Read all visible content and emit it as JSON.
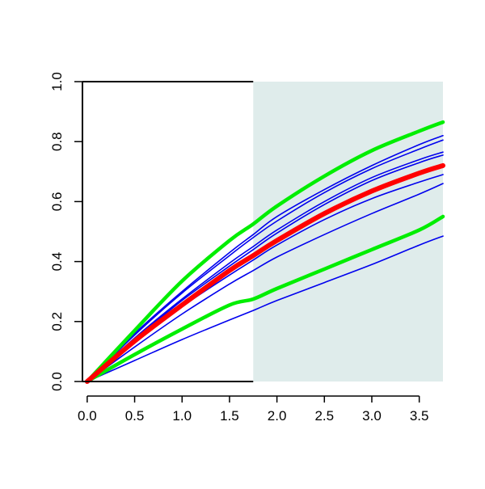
{
  "chart_data": {
    "type": "line",
    "title": "",
    "xlabel": "",
    "ylabel": "",
    "xlim": [
      -0.05,
      3.75
    ],
    "ylim": [
      0,
      1
    ],
    "x_ticks": [
      "0.0",
      "0.5",
      "1.0",
      "1.5",
      "2.0",
      "2.5",
      "3.0",
      "3.5"
    ],
    "y_ticks": [
      "0.0",
      "0.2",
      "0.4",
      "0.6",
      "0.8",
      "1.0"
    ],
    "grid": false,
    "shaded_region": {
      "x_start": 1.75,
      "x_end": 3.75,
      "color": "#dfeceb"
    },
    "x": [
      0,
      0.5,
      1.0,
      1.5,
      1.75,
      2.0,
      2.5,
      3.0,
      3.5,
      3.75
    ],
    "series": [
      {
        "role": "reference",
        "color": "#0000ee",
        "values": [
          0,
          0.16,
          0.3,
          0.43,
          0.49,
          0.55,
          0.64,
          0.72,
          0.79,
          0.82
        ]
      },
      {
        "role": "reference",
        "color": "#0000ee",
        "values": [
          0,
          0.155,
          0.295,
          0.42,
          0.48,
          0.535,
          0.63,
          0.71,
          0.775,
          0.805
        ]
      },
      {
        "role": "reference",
        "color": "#0000ee",
        "values": [
          0,
          0.145,
          0.275,
          0.395,
          0.45,
          0.505,
          0.6,
          0.68,
          0.74,
          0.765
        ]
      },
      {
        "role": "reference",
        "color": "#0000ee",
        "values": [
          0,
          0.14,
          0.27,
          0.385,
          0.44,
          0.495,
          0.59,
          0.67,
          0.73,
          0.755
        ]
      },
      {
        "role": "reference",
        "color": "#0000ee",
        "values": [
          0,
          0.13,
          0.25,
          0.355,
          0.405,
          0.455,
          0.54,
          0.61,
          0.665,
          0.69
        ]
      },
      {
        "role": "reference",
        "color": "#0000ee",
        "values": [
          0,
          0.115,
          0.225,
          0.325,
          0.37,
          0.415,
          0.49,
          0.56,
          0.625,
          0.66
        ]
      },
      {
        "role": "reference",
        "color": "#0000ee",
        "values": [
          0,
          0.07,
          0.14,
          0.205,
          0.237,
          0.27,
          0.33,
          0.39,
          0.455,
          0.485
        ]
      },
      {
        "role": "upper-bound",
        "color": "#00ee00",
        "values": [
          0,
          0.17,
          0.335,
          0.47,
          0.525,
          0.585,
          0.685,
          0.77,
          0.835,
          0.865
        ]
      },
      {
        "role": "lower-bound",
        "color": "#00ee00",
        "values": [
          0,
          0.09,
          0.175,
          0.255,
          0.275,
          0.31,
          0.375,
          0.44,
          0.505,
          0.55
        ]
      },
      {
        "role": "central",
        "color": "#ff0000",
        "values": [
          0,
          0.135,
          0.255,
          0.37,
          0.42,
          0.47,
          0.56,
          0.635,
          0.695,
          0.72
        ]
      }
    ]
  }
}
